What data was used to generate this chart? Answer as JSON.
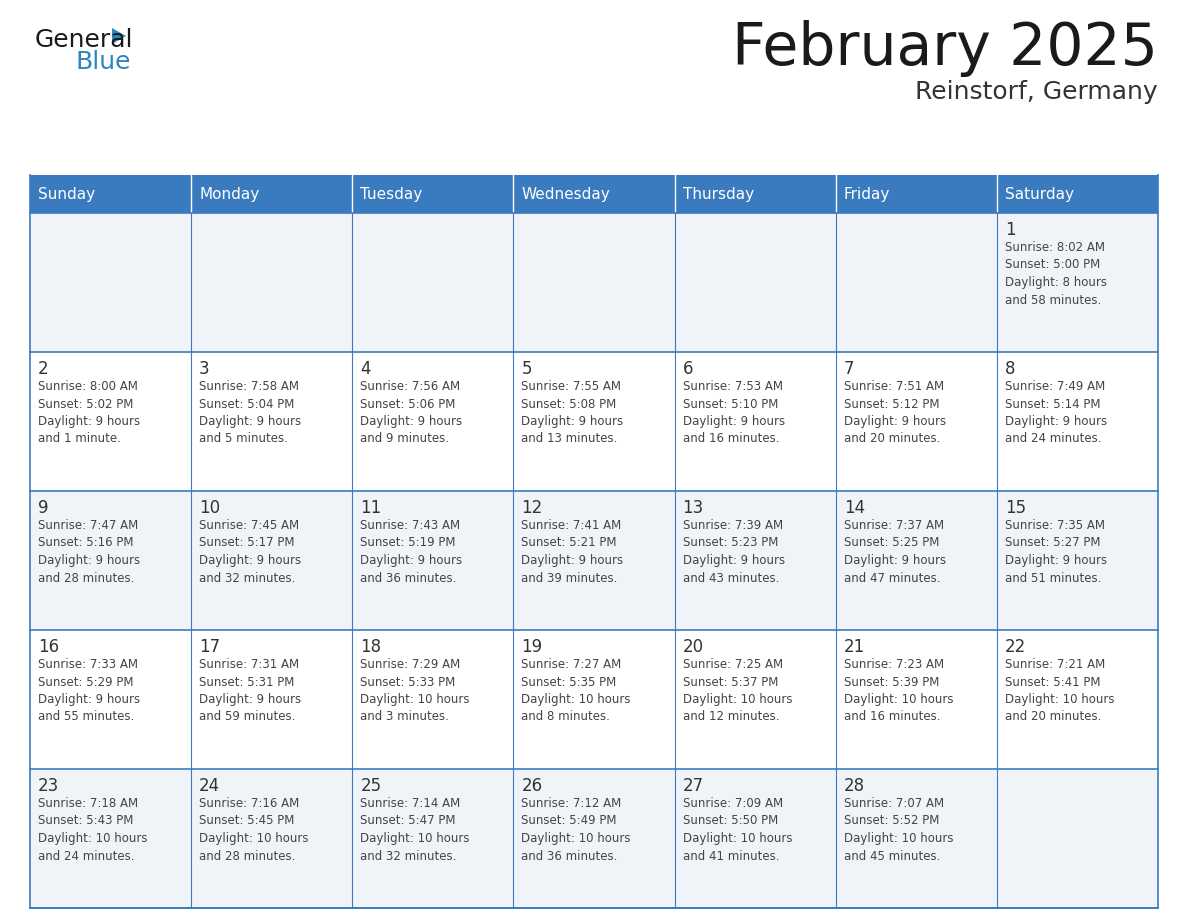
{
  "title": "February 2025",
  "subtitle": "Reinstorf, Germany",
  "days_of_week": [
    "Sunday",
    "Monday",
    "Tuesday",
    "Wednesday",
    "Thursday",
    "Friday",
    "Saturday"
  ],
  "header_bg": "#3a7bbf",
  "header_text": "#ffffff",
  "cell_bg_odd": "#f0f4f8",
  "cell_bg_even": "#ffffff",
  "border_color": "#3a7bbf",
  "day_number_color": "#333333",
  "info_text_color": "#444444",
  "title_color": "#1a1a1a",
  "subtitle_color": "#333333",
  "logo_black": "#1a1a1a",
  "logo_blue": "#2e86c1",
  "weeks": [
    [
      {
        "day": "",
        "info": ""
      },
      {
        "day": "",
        "info": ""
      },
      {
        "day": "",
        "info": ""
      },
      {
        "day": "",
        "info": ""
      },
      {
        "day": "",
        "info": ""
      },
      {
        "day": "",
        "info": ""
      },
      {
        "day": "1",
        "info": "Sunrise: 8:02 AM\nSunset: 5:00 PM\nDaylight: 8 hours\nand 58 minutes."
      }
    ],
    [
      {
        "day": "2",
        "info": "Sunrise: 8:00 AM\nSunset: 5:02 PM\nDaylight: 9 hours\nand 1 minute."
      },
      {
        "day": "3",
        "info": "Sunrise: 7:58 AM\nSunset: 5:04 PM\nDaylight: 9 hours\nand 5 minutes."
      },
      {
        "day": "4",
        "info": "Sunrise: 7:56 AM\nSunset: 5:06 PM\nDaylight: 9 hours\nand 9 minutes."
      },
      {
        "day": "5",
        "info": "Sunrise: 7:55 AM\nSunset: 5:08 PM\nDaylight: 9 hours\nand 13 minutes."
      },
      {
        "day": "6",
        "info": "Sunrise: 7:53 AM\nSunset: 5:10 PM\nDaylight: 9 hours\nand 16 minutes."
      },
      {
        "day": "7",
        "info": "Sunrise: 7:51 AM\nSunset: 5:12 PM\nDaylight: 9 hours\nand 20 minutes."
      },
      {
        "day": "8",
        "info": "Sunrise: 7:49 AM\nSunset: 5:14 PM\nDaylight: 9 hours\nand 24 minutes."
      }
    ],
    [
      {
        "day": "9",
        "info": "Sunrise: 7:47 AM\nSunset: 5:16 PM\nDaylight: 9 hours\nand 28 minutes."
      },
      {
        "day": "10",
        "info": "Sunrise: 7:45 AM\nSunset: 5:17 PM\nDaylight: 9 hours\nand 32 minutes."
      },
      {
        "day": "11",
        "info": "Sunrise: 7:43 AM\nSunset: 5:19 PM\nDaylight: 9 hours\nand 36 minutes."
      },
      {
        "day": "12",
        "info": "Sunrise: 7:41 AM\nSunset: 5:21 PM\nDaylight: 9 hours\nand 39 minutes."
      },
      {
        "day": "13",
        "info": "Sunrise: 7:39 AM\nSunset: 5:23 PM\nDaylight: 9 hours\nand 43 minutes."
      },
      {
        "day": "14",
        "info": "Sunrise: 7:37 AM\nSunset: 5:25 PM\nDaylight: 9 hours\nand 47 minutes."
      },
      {
        "day": "15",
        "info": "Sunrise: 7:35 AM\nSunset: 5:27 PM\nDaylight: 9 hours\nand 51 minutes."
      }
    ],
    [
      {
        "day": "16",
        "info": "Sunrise: 7:33 AM\nSunset: 5:29 PM\nDaylight: 9 hours\nand 55 minutes."
      },
      {
        "day": "17",
        "info": "Sunrise: 7:31 AM\nSunset: 5:31 PM\nDaylight: 9 hours\nand 59 minutes."
      },
      {
        "day": "18",
        "info": "Sunrise: 7:29 AM\nSunset: 5:33 PM\nDaylight: 10 hours\nand 3 minutes."
      },
      {
        "day": "19",
        "info": "Sunrise: 7:27 AM\nSunset: 5:35 PM\nDaylight: 10 hours\nand 8 minutes."
      },
      {
        "day": "20",
        "info": "Sunrise: 7:25 AM\nSunset: 5:37 PM\nDaylight: 10 hours\nand 12 minutes."
      },
      {
        "day": "21",
        "info": "Sunrise: 7:23 AM\nSunset: 5:39 PM\nDaylight: 10 hours\nand 16 minutes."
      },
      {
        "day": "22",
        "info": "Sunrise: 7:21 AM\nSunset: 5:41 PM\nDaylight: 10 hours\nand 20 minutes."
      }
    ],
    [
      {
        "day": "23",
        "info": "Sunrise: 7:18 AM\nSunset: 5:43 PM\nDaylight: 10 hours\nand 24 minutes."
      },
      {
        "day": "24",
        "info": "Sunrise: 7:16 AM\nSunset: 5:45 PM\nDaylight: 10 hours\nand 28 minutes."
      },
      {
        "day": "25",
        "info": "Sunrise: 7:14 AM\nSunset: 5:47 PM\nDaylight: 10 hours\nand 32 minutes."
      },
      {
        "day": "26",
        "info": "Sunrise: 7:12 AM\nSunset: 5:49 PM\nDaylight: 10 hours\nand 36 minutes."
      },
      {
        "day": "27",
        "info": "Sunrise: 7:09 AM\nSunset: 5:50 PM\nDaylight: 10 hours\nand 41 minutes."
      },
      {
        "day": "28",
        "info": "Sunrise: 7:07 AM\nSunset: 5:52 PM\nDaylight: 10 hours\nand 45 minutes."
      },
      {
        "day": "",
        "info": ""
      }
    ]
  ]
}
